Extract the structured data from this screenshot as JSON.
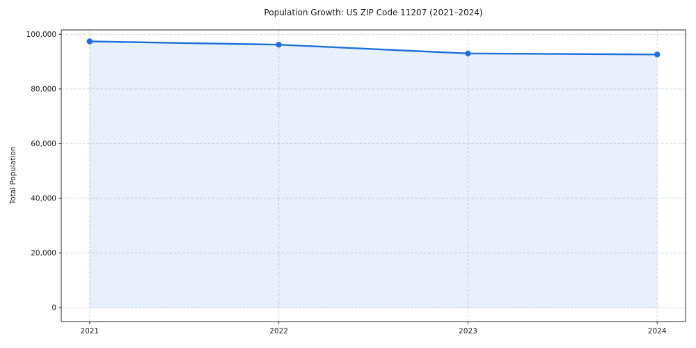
{
  "chart_data": {
    "type": "line",
    "title": "Population Growth: US ZIP Code 11207 (2021–2024)",
    "xlabel": "",
    "ylabel": "Total Population",
    "x": [
      2021,
      2022,
      2023,
      2024
    ],
    "series": [
      {
        "name": "Total Population",
        "values": [
          97400,
          96200,
          93000,
          92600
        ],
        "color": "#1f6fdb",
        "fill_color": "rgba(31,111,219,0.10)",
        "fill_to_zero": true,
        "marker": "circle"
      }
    ],
    "xticks": {
      "values": [
        2021,
        2022,
        2023,
        2024
      ],
      "labels": [
        "2021",
        "2022",
        "2023",
        "2024"
      ]
    },
    "yticks": {
      "values": [
        0,
        20000,
        40000,
        60000,
        80000,
        100000
      ],
      "labels": [
        "0",
        "20,000",
        "40,000",
        "60,000",
        "80,000",
        "100,000"
      ]
    },
    "xlim": [
      2020.85,
      2024.15
    ],
    "ylim": [
      -5100,
      101600
    ],
    "grid": {
      "on": true,
      "line_style": "dashed",
      "color": "#d8d8d8"
    },
    "axes_color": "#262626",
    "tick_label_color": "#1a1a1a",
    "background_color": "#ffffff"
  }
}
